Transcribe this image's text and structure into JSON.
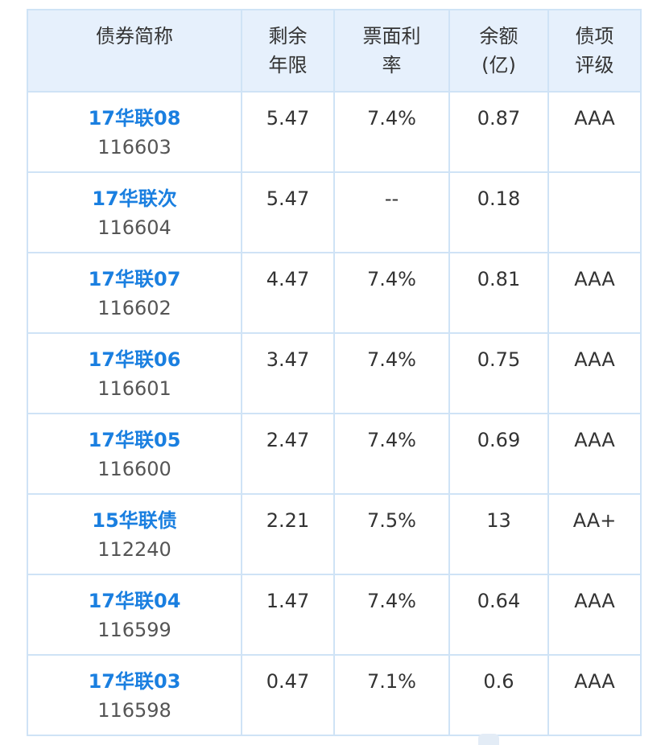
{
  "header": {
    "name": [
      "债券简称"
    ],
    "term": [
      "剩余",
      "年限"
    ],
    "rate": [
      "票面利",
      "率"
    ],
    "amount": [
      "余额",
      "(亿)"
    ],
    "rating": [
      "债项",
      "评级"
    ]
  },
  "rows": [
    {
      "name": "17华联08",
      "code": "116603",
      "term": "5.47",
      "rate": "7.4%",
      "amount": "0.87",
      "rating": "AAA"
    },
    {
      "name": "17华联次",
      "code": "116604",
      "term": "5.47",
      "rate": "--",
      "amount": "0.18",
      "rating": ""
    },
    {
      "name": "17华联07",
      "code": "116602",
      "term": "4.47",
      "rate": "7.4%",
      "amount": "0.81",
      "rating": "AAA"
    },
    {
      "name": "17华联06",
      "code": "116601",
      "term": "3.47",
      "rate": "7.4%",
      "amount": "0.75",
      "rating": "AAA"
    },
    {
      "name": "17华联05",
      "code": "116600",
      "term": "2.47",
      "rate": "7.4%",
      "amount": "0.69",
      "rating": "AAA"
    },
    {
      "name": "15华联债",
      "code": "112240",
      "term": "2.21",
      "rate": "7.5%",
      "amount": "13",
      "rating": "AA+"
    },
    {
      "name": "17华联04",
      "code": "116599",
      "term": "1.47",
      "rate": "7.4%",
      "amount": "0.64",
      "rating": "AAA"
    },
    {
      "name": "17华联03",
      "code": "116598",
      "term": "0.47",
      "rate": "7.1%",
      "amount": "0.6",
      "rating": "AAA"
    }
  ],
  "colors": {
    "link": "#1a7fe0",
    "header_bg": "#e6f0fc",
    "border": "#cfe3f6",
    "text": "#333333"
  },
  "watermark_icon": "watermark-logo-icon"
}
